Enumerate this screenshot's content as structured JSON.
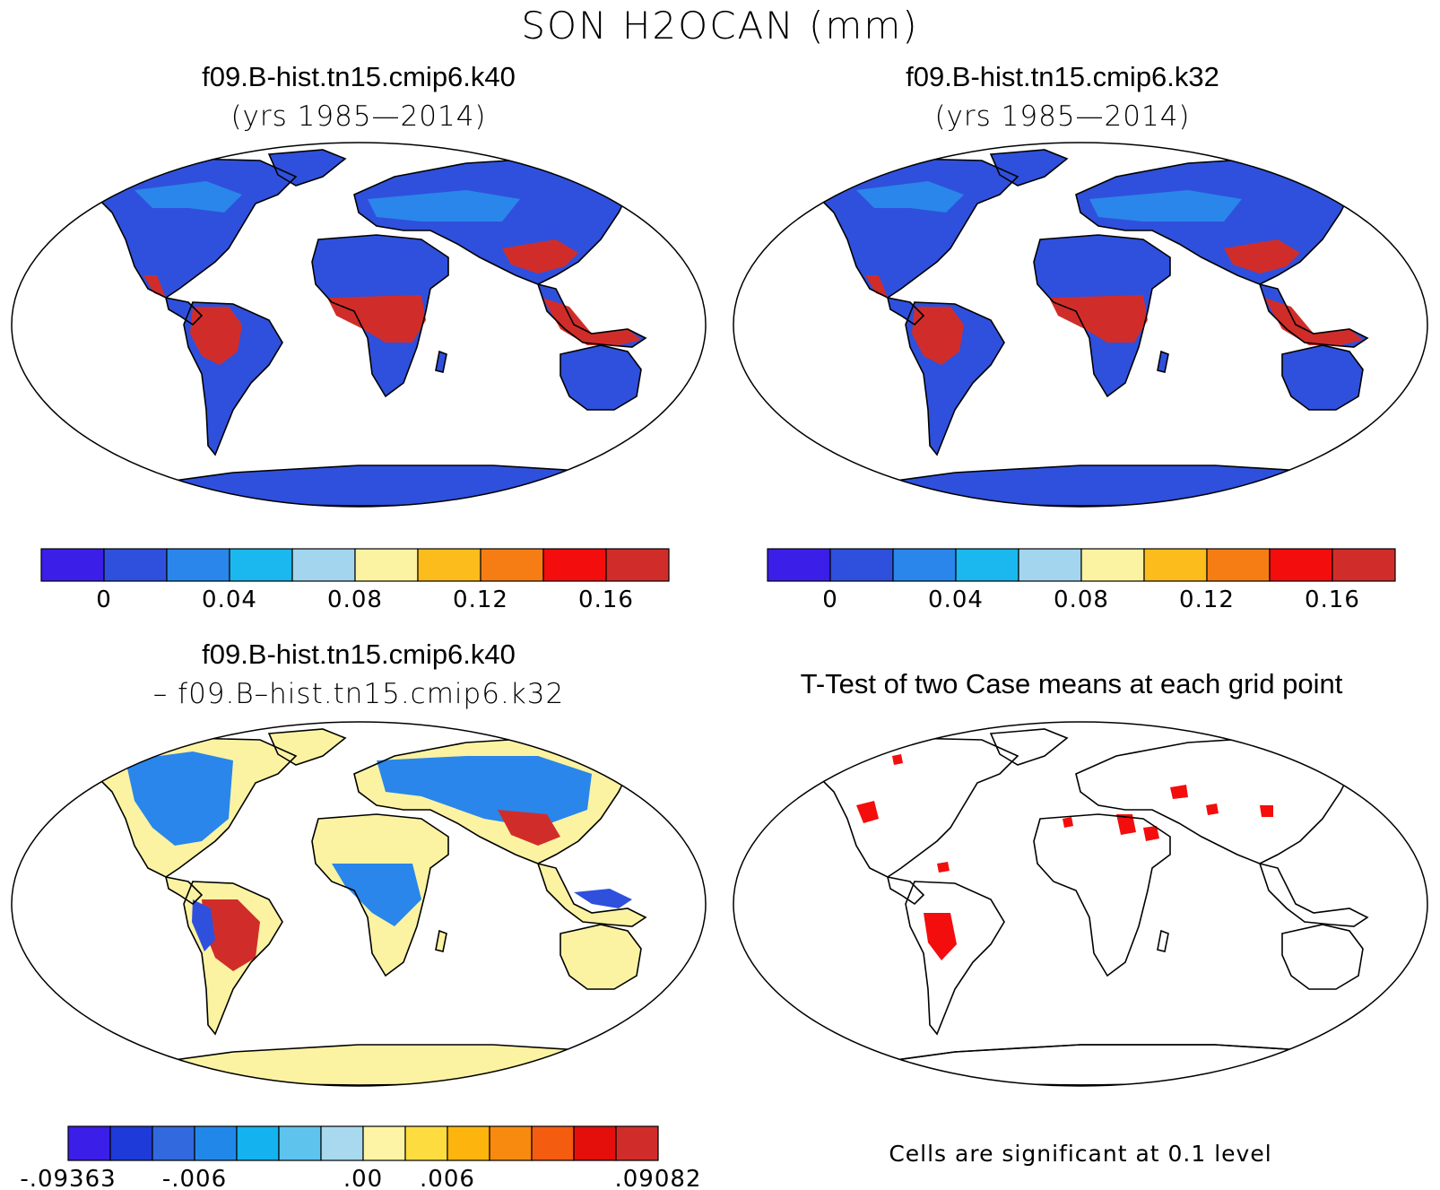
{
  "title": "SON H2OCAN (mm)",
  "panels": [
    {
      "case": "f09.B-hist.tn15.cmip6.k40",
      "sub": "(yrs 1985—2014)"
    },
    {
      "case": "f09.B-hist.tn15.cmip6.k32",
      "sub": "(yrs 1985—2014)"
    },
    {
      "case": "f09.B-hist.tn15.cmip6.k40",
      "sub": "– f09.B–hist.tn15.cmip6.k32"
    },
    {
      "case": "T-Test of two Case means at each grid point",
      "sub": ""
    }
  ],
  "note": "Cells are significant at 0.1 level",
  "colorbars": {
    "abs": {
      "colors": [
        "#3b1ee8",
        "#2f50dc",
        "#2a86ea",
        "#1ab8ee",
        "#a3d6ee",
        "#fbf3a2",
        "#fcbc1c",
        "#f67d13",
        "#f30d0d",
        "#d02d2a"
      ],
      "labels": [
        "0",
        "0.04",
        "0.08",
        "0.12",
        "0.16"
      ]
    },
    "diff": {
      "colors": [
        "#3b1ee8",
        "#1e3ad9",
        "#3269de",
        "#2188ea",
        "#14b2ee",
        "#5ec4ee",
        "#a8d9ee",
        "#fdf4a5",
        "#fddc40",
        "#fdb50e",
        "#f98a10",
        "#f45c10",
        "#e40f0b",
        "#d02d2a"
      ],
      "labels": [
        ".00",
        ".006",
        "-.006",
        "-.09363",
        ".09082"
      ]
    }
  },
  "map_colors": {
    "land_low": "#2f50dc",
    "land_mid": "#2a86ea",
    "land_high": "#d02d2a",
    "diff_land": "#fbf3a2",
    "significant": "#f30d0d"
  }
}
